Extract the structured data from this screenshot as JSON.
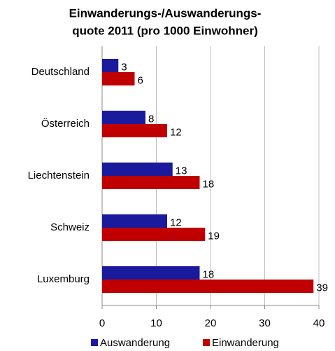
{
  "chart_data": {
    "type": "bar",
    "orientation": "horizontal",
    "title": [
      "Einwanderungs-/Auswanderungs-",
      "quote 2011 (pro 1000 Einwohner)"
    ],
    "categories": [
      "Deutschland",
      "Österreich",
      "Liechtenstein",
      "Schweiz",
      "Luxemburg"
    ],
    "series": [
      {
        "name": "Auswanderung",
        "color": "#1a1a9c",
        "values": [
          3,
          8,
          13,
          12,
          18
        ]
      },
      {
        "name": "Einwanderung",
        "color": "#c00000",
        "values": [
          6,
          12,
          18,
          19,
          39
        ]
      }
    ],
    "xlim": [
      0,
      40
    ],
    "xticks": [
      0,
      10,
      20,
      30,
      40
    ],
    "grid": true,
    "legend": "bottom"
  }
}
